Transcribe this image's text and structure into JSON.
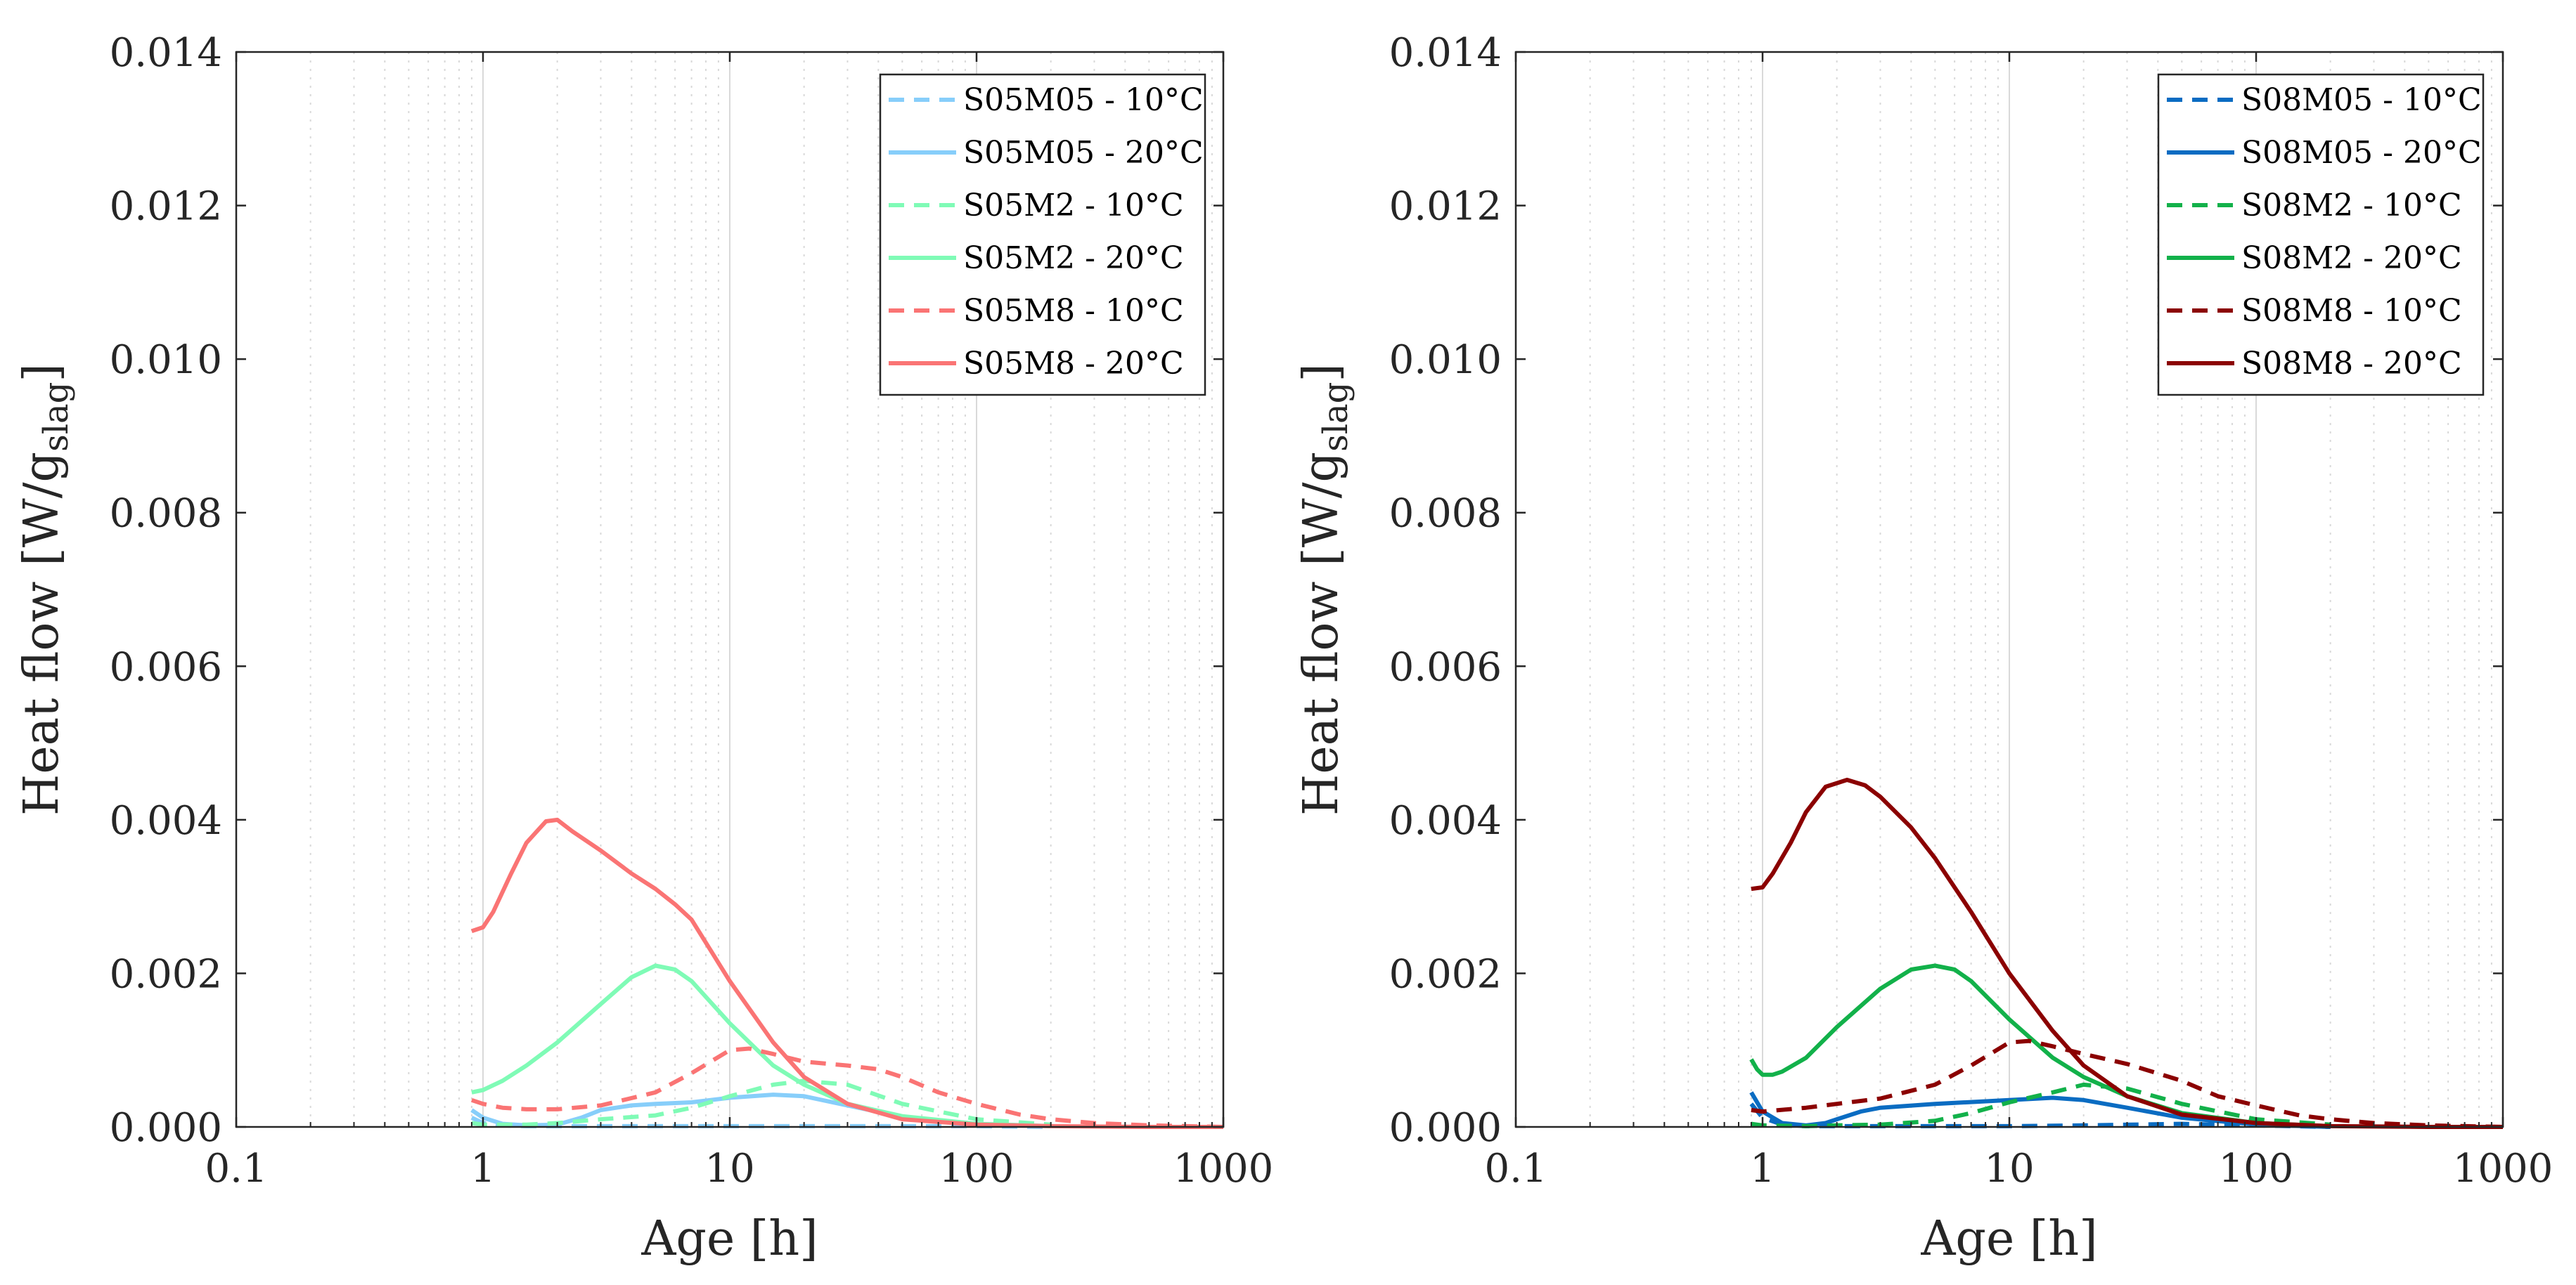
{
  "chart_data": [
    {
      "type": "line",
      "xscale": "log",
      "xlim": [
        0.1,
        1000
      ],
      "ylim": [
        0,
        0.014
      ],
      "xlabel": "Age [h]",
      "ylabel": "Heat flow [W/g",
      "ylabel_subscript": "slag",
      "ylabel_suffix": "]",
      "xticks": [
        "0.1",
        "1",
        "10",
        "100",
        "1000"
      ],
      "yticks": [
        "0.000",
        "0.002",
        "0.004",
        "0.006",
        "0.008",
        "0.010",
        "0.012",
        "0.014"
      ],
      "legend_position": "top-right",
      "series": [
        {
          "name": "S05M05 - 10°C",
          "color": "#87cefa",
          "style": "dashed",
          "x": [
            0.9,
            1.0,
            1.2,
            1.5,
            2,
            3,
            5,
            10,
            20,
            50,
            100,
            200
          ],
          "y": [
            0.00012,
            5e-05,
            2e-05,
            1e-05,
            1e-05,
            1e-05,
            1e-05,
            1e-05,
            1e-05,
            1e-05,
            1e-05,
            0.0
          ]
        },
        {
          "name": "S05M05 - 20°C",
          "color": "#87cefa",
          "style": "solid",
          "x": [
            0.9,
            1.0,
            1.2,
            1.5,
            2.0,
            2.5,
            3.0,
            4.0,
            5.0,
            7.0,
            10,
            15,
            20,
            30,
            50,
            100,
            200
          ],
          "y": [
            0.00022,
            0.00012,
            4e-05,
            2e-05,
            3e-05,
            0.00012,
            0.00022,
            0.00028,
            0.0003,
            0.00032,
            0.00038,
            0.00042,
            0.0004,
            0.00028,
            0.00013,
            4e-05,
            1e-05
          ]
        },
        {
          "name": "S05M2 - 10°C",
          "color": "#7ffbb6",
          "style": "dashed",
          "x": [
            0.9,
            1.0,
            1.5,
            2,
            3,
            5,
            7,
            10,
            15,
            20,
            30,
            50,
            100,
            200
          ],
          "y": [
            5e-05,
            3e-05,
            3e-05,
            5e-05,
            0.0001,
            0.00015,
            0.00025,
            0.0004,
            0.00055,
            0.0006,
            0.00055,
            0.0003,
            0.0001,
            3e-05
          ]
        },
        {
          "name": "S05M2 - 20°C",
          "color": "#7ffbb6",
          "style": "solid",
          "x": [
            0.9,
            1.0,
            1.2,
            1.5,
            2.0,
            3.0,
            4.0,
            5.0,
            6.0,
            7.0,
            10,
            15,
            20,
            30,
            50,
            100,
            200
          ],
          "y": [
            0.00045,
            0.00048,
            0.0006,
            0.0008,
            0.0011,
            0.0016,
            0.00195,
            0.0021,
            0.00205,
            0.0019,
            0.00135,
            0.0008,
            0.00055,
            0.0003,
            0.00014,
            4e-05,
            1e-05
          ]
        },
        {
          "name": "S05M8 - 10°C",
          "color": "#fa7474",
          "style": "dashed",
          "x": [
            0.9,
            1.0,
            1.2,
            1.5,
            2,
            3,
            5,
            7,
            10,
            12,
            15,
            20,
            30,
            40,
            50,
            70,
            100,
            150,
            200,
            300,
            500,
            1000
          ],
          "y": [
            0.00035,
            0.0003,
            0.00025,
            0.00023,
            0.00023,
            0.00028,
            0.00045,
            0.0007,
            0.001,
            0.00102,
            0.00095,
            0.00085,
            0.0008,
            0.00075,
            0.00065,
            0.00045,
            0.0003,
            0.00016,
            0.0001,
            5e-05,
            2e-05,
            0.0
          ]
        },
        {
          "name": "S05M8 - 20°C",
          "color": "#fa7474",
          "style": "solid",
          "x": [
            0.9,
            1.0,
            1.1,
            1.3,
            1.5,
            1.8,
            2.0,
            2.3,
            3.0,
            4.0,
            5.0,
            6.0,
            7.0,
            10,
            15,
            20,
            30,
            50,
            100,
            200,
            500,
            1000
          ],
          "y": [
            0.00255,
            0.0026,
            0.0028,
            0.0033,
            0.0037,
            0.00398,
            0.004,
            0.00385,
            0.0036,
            0.0033,
            0.0031,
            0.0029,
            0.0027,
            0.0019,
            0.0011,
            0.00065,
            0.0003,
            0.0001,
            3e-05,
            1e-05,
            0.0,
            0.0
          ]
        }
      ]
    },
    {
      "type": "line",
      "xscale": "log",
      "xlim": [
        0.1,
        1000
      ],
      "ylim": [
        0,
        0.014
      ],
      "xlabel": "Age [h]",
      "ylabel": "Heat flow [W/g",
      "ylabel_subscript": "slag",
      "ylabel_suffix": "]",
      "xticks": [
        "0.1",
        "1",
        "10",
        "100",
        "1000"
      ],
      "yticks": [
        "0.000",
        "0.002",
        "0.004",
        "0.006",
        "0.008",
        "0.010",
        "0.012",
        "0.014"
      ],
      "legend_position": "top-right",
      "series": [
        {
          "name": "S08M05 - 10°C",
          "color": "#0a6cc2",
          "style": "dashed",
          "x": [
            0.9,
            1.0,
            1.2,
            1.5,
            2,
            3,
            5,
            10,
            20,
            50,
            100,
            200
          ],
          "y": [
            0.0003,
            0.00012,
            3e-05,
            1e-05,
            1e-05,
            1e-05,
            1e-05,
            1e-05,
            2e-05,
            4e-05,
            2e-05,
            0.0
          ]
        },
        {
          "name": "S08M05 - 20°C",
          "color": "#0a6cc2",
          "style": "solid",
          "x": [
            0.9,
            1.0,
            1.2,
            1.5,
            1.8,
            2.0,
            2.5,
            3.0,
            5.0,
            10,
            15,
            20,
            30,
            50,
            100,
            200
          ],
          "y": [
            0.00045,
            0.0002,
            5e-05,
            2e-05,
            5e-05,
            0.0001,
            0.0002,
            0.00025,
            0.0003,
            0.00035,
            0.00038,
            0.00035,
            0.00025,
            0.00012,
            3e-05,
            0.0
          ]
        },
        {
          "name": "S08M2 - 10°C",
          "color": "#12b14a",
          "style": "dashed",
          "x": [
            0.9,
            1.0,
            1.5,
            2,
            3,
            5,
            7,
            10,
            15,
            20,
            30,
            50,
            100,
            200
          ],
          "y": [
            4e-05,
            2e-05,
            1e-05,
            2e-05,
            3e-05,
            8e-05,
            0.00018,
            0.00032,
            0.00045,
            0.00055,
            0.0005,
            0.0003,
            0.0001,
            3e-05
          ]
        },
        {
          "name": "S08M2 - 20°C",
          "color": "#12b14a",
          "style": "solid",
          "x": [
            0.9,
            0.95,
            1.0,
            1.1,
            1.2,
            1.5,
            2.0,
            3.0,
            4.0,
            5.0,
            6.0,
            7.0,
            10,
            15,
            20,
            30,
            50,
            100,
            200
          ],
          "y": [
            0.00088,
            0.00075,
            0.00068,
            0.00068,
            0.00072,
            0.0009,
            0.0013,
            0.0018,
            0.00205,
            0.0021,
            0.00205,
            0.0019,
            0.0014,
            0.0009,
            0.00065,
            0.0004,
            0.00018,
            5e-05,
            1e-05
          ]
        },
        {
          "name": "S08M8 - 10°C",
          "color": "#8b0000",
          "style": "dashed",
          "x": [
            0.9,
            1.0,
            1.5,
            2,
            3,
            5,
            7,
            10,
            12,
            15,
            20,
            30,
            50,
            70,
            100,
            150,
            200,
            300,
            500,
            1000
          ],
          "y": [
            0.00022,
            0.0002,
            0.00025,
            0.0003,
            0.00037,
            0.00055,
            0.0008,
            0.0011,
            0.00112,
            0.00105,
            0.00095,
            0.00082,
            0.0006,
            0.0004,
            0.00028,
            0.00015,
            0.0001,
            5e-05,
            2e-05,
            0.0
          ]
        },
        {
          "name": "S08M8 - 20°C",
          "color": "#8b0000",
          "style": "solid",
          "x": [
            0.9,
            1.0,
            1.1,
            1.3,
            1.5,
            1.8,
            2.2,
            2.6,
            3.0,
            4.0,
            5.0,
            7.0,
            10,
            15,
            20,
            30,
            50,
            100,
            200,
            500,
            1000
          ],
          "y": [
            0.0031,
            0.00312,
            0.0033,
            0.0037,
            0.0041,
            0.00443,
            0.00452,
            0.00445,
            0.0043,
            0.0039,
            0.0035,
            0.0028,
            0.002,
            0.00125,
            0.0008,
            0.0004,
            0.00016,
            5e-05,
            1e-05,
            0.0,
            0.0
          ]
        }
      ]
    }
  ]
}
